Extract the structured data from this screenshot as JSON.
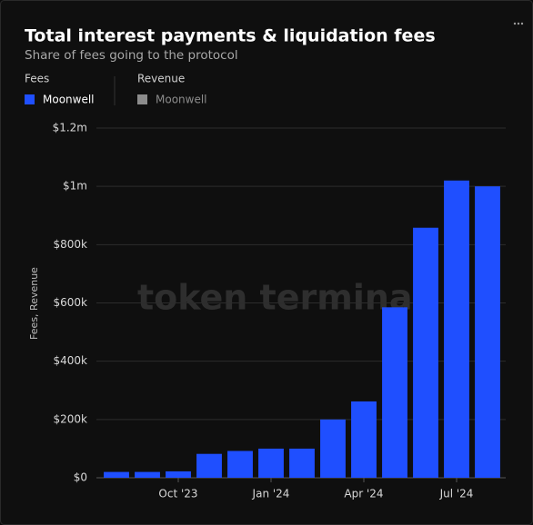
{
  "chart_data": {
    "type": "bar",
    "title": "Total interest payments & liquidation fees",
    "subtitle": "Share of fees going to the protocol",
    "legend": [
      {
        "group": "Fees",
        "name": "Moonwell",
        "color": "#1f4fff"
      },
      {
        "group": "Revenue",
        "name": "Moonwell",
        "color": "#8c8c8c"
      }
    ],
    "ylabel": "Fees, Revenue",
    "watermark": "token terminal.",
    "categories": [
      null,
      null,
      "Oct '23",
      null,
      null,
      "Jan '24",
      null,
      null,
      "Apr '24",
      null,
      null,
      "Jul '24",
      null
    ],
    "series": [
      {
        "name": "Moonwell",
        "color": "#1f4fff",
        "values": [
          20000,
          20000,
          22000,
          82000,
          92000,
          100000,
          100000,
          200000,
          262000,
          585000,
          858000,
          1020000,
          1000000
        ]
      }
    ],
    "ylim": [
      0,
      1200000
    ],
    "yticks": [
      {
        "value": 0,
        "label": "$0"
      },
      {
        "value": 200000,
        "label": "$200k"
      },
      {
        "value": 400000,
        "label": "$400k"
      },
      {
        "value": 600000,
        "label": "$600k"
      },
      {
        "value": 800000,
        "label": "$800k"
      },
      {
        "value": 1000000,
        "label": "$1m"
      },
      {
        "value": 1200000,
        "label": "$1.2m"
      }
    ],
    "grid": true
  }
}
